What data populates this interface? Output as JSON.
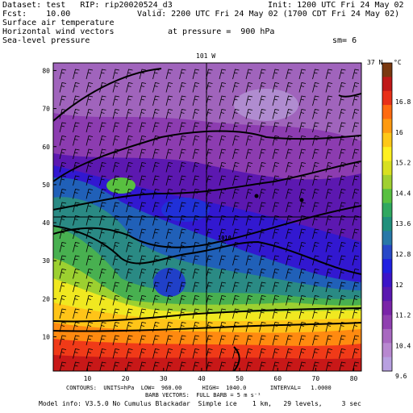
{
  "header": {
    "dataset": "Dataset: test   RIP: rip20020524_d3",
    "init": "Init: 1200 UTC Fri 24 May 02",
    "fcst": "Fcst:    10.00",
    "valid": "Valid: 2200 UTC Fri 24 May 02 (1700 CDT Fri 24 May 02)",
    "field1": "Surface air temperature",
    "field2": "Horizontal wind vectors",
    "pressure": "at pressure =  900 hPa",
    "field3": "Sea-level pressure",
    "sm": "sm= 6"
  },
  "map": {
    "top_label": "101 W",
    "right_label": "37 N",
    "x_ticks": [
      "10",
      "20",
      "30",
      "40",
      "50",
      "60",
      "70",
      "80"
    ],
    "y_ticks": [
      "10",
      "20",
      "30",
      "40",
      "50",
      "60",
      "70",
      "80"
    ],
    "contour_label": "1010"
  },
  "colorbar": {
    "unit": "°C",
    "labels": [
      "16.8",
      "16",
      "15.2",
      "14.4",
      "13.6",
      "12.8",
      "12",
      "11.2",
      "10.4",
      "9.6"
    ],
    "colors": [
      "#7a3810",
      "#c01818",
      "#e83018",
      "#ff6a10",
      "#ff9a10",
      "#ffc818",
      "#fff020",
      "#d8e020",
      "#a0d030",
      "#58c040",
      "#30a860",
      "#20907c",
      "#2878a8",
      "#2848c8",
      "#2020e0",
      "#3c14c8",
      "#5a18b0",
      "#7a24a8",
      "#9040b0",
      "#a868c0",
      "#b888d0",
      "#b8a0e0"
    ]
  },
  "footer": {
    "contours": "CONTOURS:  UNITS=hPa  LOW=  960.00      HIGH=  1040.0       INTERVAL=   1.0000",
    "barb": "BARB VECTORS:  FULL BARB = 5 m s⁻¹",
    "model": "Model info: V3.5.0 No Cumulus Blackadar  Simple ice    1 km,   29 levels,     3 sec"
  }
}
